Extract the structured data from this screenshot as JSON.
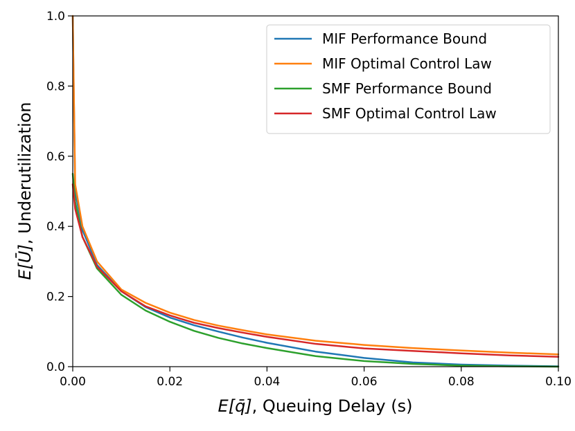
{
  "chart_data": {
    "type": "line",
    "xlabel_math": "E[q̄]",
    "xlabel_text": ", Queuing Delay (s)",
    "ylabel_math": "E[Ū]",
    "ylabel_text": ", Underutilization",
    "xlim": [
      0.0,
      0.1
    ],
    "ylim": [
      0.0,
      1.0
    ],
    "x_ticks": [
      "0.00",
      "0.02",
      "0.04",
      "0.06",
      "0.08",
      "0.10"
    ],
    "y_ticks": [
      "0.0",
      "0.2",
      "0.4",
      "0.6",
      "0.8",
      "1.0"
    ],
    "grid": false,
    "legend_position": "top-right",
    "series": [
      {
        "name": "MIF Performance Bound",
        "color": "#1f77b4",
        "x": [
          0,
          0.0005,
          0.002,
          0.005,
          0.01,
          0.015,
          0.02,
          0.025,
          0.03,
          0.035,
          0.04,
          0.05,
          0.06,
          0.07,
          0.08,
          0.09,
          0.1
        ],
        "y": [
          1.0,
          0.5,
          0.39,
          0.29,
          0.215,
          0.17,
          0.14,
          0.118,
          0.1,
          0.083,
          0.068,
          0.043,
          0.025,
          0.012,
          0.006,
          0.003,
          0.001
        ]
      },
      {
        "name": "MIF Optimal Control Law",
        "color": "#ff7f0e",
        "x": [
          0,
          0.0005,
          0.002,
          0.005,
          0.01,
          0.015,
          0.02,
          0.025,
          0.03,
          0.035,
          0.04,
          0.05,
          0.06,
          0.07,
          0.08,
          0.09,
          0.1
        ],
        "y": [
          1.0,
          0.52,
          0.4,
          0.3,
          0.22,
          0.182,
          0.154,
          0.133,
          0.117,
          0.104,
          0.092,
          0.074,
          0.062,
          0.053,
          0.046,
          0.04,
          0.035
        ]
      },
      {
        "name": "SMF Performance Bound",
        "color": "#2ca02c",
        "x": [
          0,
          0.0005,
          0.002,
          0.005,
          0.01,
          0.015,
          0.02,
          0.025,
          0.03,
          0.035,
          0.04,
          0.05,
          0.06,
          0.07,
          0.08,
          0.09,
          0.1
        ],
        "y": [
          0.55,
          0.47,
          0.37,
          0.28,
          0.205,
          0.16,
          0.128,
          0.102,
          0.082,
          0.066,
          0.053,
          0.03,
          0.016,
          0.008,
          0.003,
          0.001,
          0.0
        ]
      },
      {
        "name": "SMF Optimal Control Law",
        "color": "#d62728",
        "x": [
          0,
          0.0005,
          0.002,
          0.005,
          0.01,
          0.015,
          0.02,
          0.025,
          0.03,
          0.035,
          0.04,
          0.05,
          0.06,
          0.07,
          0.08,
          0.09,
          0.1
        ],
        "y": [
          0.52,
          0.45,
          0.37,
          0.285,
          0.215,
          0.172,
          0.146,
          0.125,
          0.11,
          0.097,
          0.085,
          0.065,
          0.052,
          0.045,
          0.038,
          0.032,
          0.028
        ]
      }
    ]
  }
}
